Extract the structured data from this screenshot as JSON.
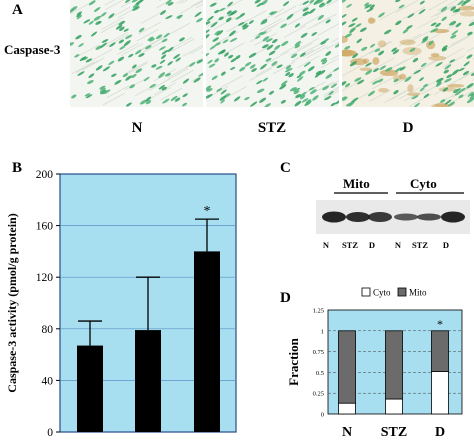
{
  "panel_a": {
    "letter": "A",
    "row_label": "Caspase-3",
    "conditions": [
      "N",
      "STZ",
      "D"
    ]
  },
  "panel_b": {
    "letter": "B"
  },
  "panel_c": {
    "letter": "C",
    "groups": [
      "Mito",
      "Cyto"
    ],
    "lanes": [
      "N",
      "STZ",
      "D",
      "N",
      "STZ",
      "D"
    ]
  },
  "panel_d": {
    "letter": "D"
  },
  "colors": {
    "plot_background": "#a8dff0",
    "bar_b": "#000000",
    "mito": "#6b6b6b",
    "cyto": "#ffffff"
  },
  "chart_data": [
    {
      "id": "panel-b",
      "type": "bar",
      "categories": [
        "",
        "",
        ""
      ],
      "values": [
        67,
        79,
        140
      ],
      "errors": [
        19,
        41,
        25
      ],
      "significance": [
        "",
        "",
        "*"
      ],
      "title": "",
      "xlabel": "",
      "ylabel": "Caspase-3 activity (pmol/g protein)",
      "ylim": [
        0,
        200
      ],
      "yticks": [
        0,
        40,
        80,
        120,
        160,
        200
      ],
      "grid": true
    },
    {
      "id": "panel-d",
      "type": "bar",
      "stacked": true,
      "categories": [
        "N",
        "STZ",
        "D"
      ],
      "series": [
        {
          "name": "Cyto",
          "values": [
            0.13,
            0.18,
            0.51
          ]
        },
        {
          "name": "Mito",
          "values": [
            0.87,
            0.82,
            0.49
          ]
        }
      ],
      "significance": [
        "",
        "",
        "*"
      ],
      "title": "",
      "xlabel": "",
      "ylabel": "Fraction",
      "ylim": [
        0,
        1.25
      ],
      "yticks": [
        "0",
        "0.25",
        "0.5",
        "0.75",
        "1",
        "1.25"
      ],
      "legend": "top-center",
      "grid": true
    }
  ]
}
